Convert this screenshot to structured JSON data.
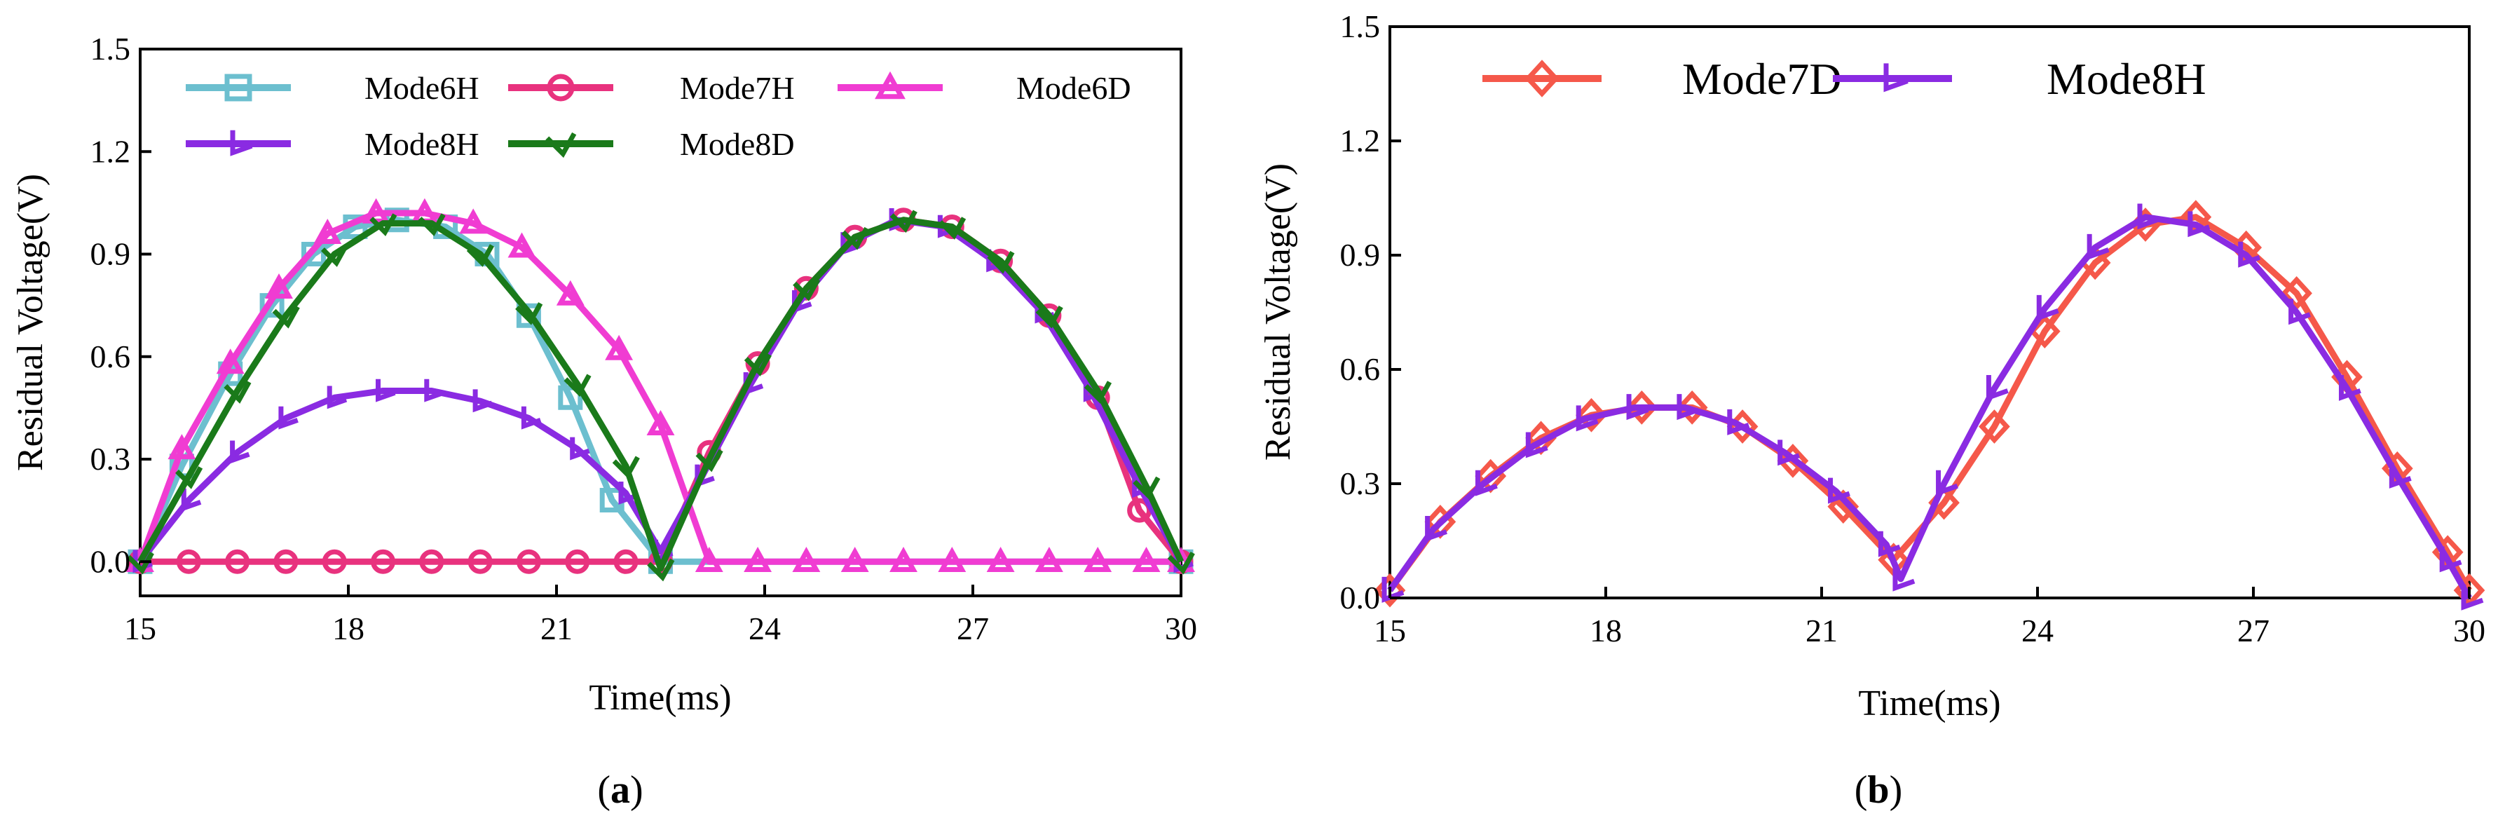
{
  "chart_data": [
    {
      "id": "a",
      "type": "line",
      "caption": {
        "open": "(",
        "letter": "a",
        "close": ")"
      },
      "xlabel": "Time(ms)",
      "ylabel": "Residual Voltage(V)",
      "xlim": [
        15,
        30
      ],
      "ylim": [
        -0.1,
        1.5
      ],
      "xticks": [
        15,
        18,
        21,
        24,
        27,
        30
      ],
      "yticks": [
        0.0,
        0.3,
        0.6,
        0.9,
        1.2,
        1.5
      ],
      "ytick_labels": [
        "0.0",
        "0.3",
        "0.6",
        "0.9",
        "1.2",
        "1.5"
      ],
      "grid": false,
      "legend_position": "top-right",
      "series": [
        {
          "name": "Mode6H",
          "color": "#6cbfcf",
          "marker": "square",
          "x": [
            15,
            15.6,
            16.3,
            16.9,
            17.5,
            18.1,
            18.7,
            19.4,
            20,
            20.6,
            21.2,
            21.8,
            22.5,
            30
          ],
          "y": [
            0,
            0.28,
            0.55,
            0.75,
            0.9,
            0.98,
            1.0,
            0.98,
            0.9,
            0.72,
            0.48,
            0.18,
            0,
            0
          ]
        },
        {
          "name": "Mode7H",
          "color": "#e8327e",
          "marker": "circle",
          "x": [
            15,
            15.7,
            16.4,
            17.1,
            17.8,
            18.5,
            19.2,
            19.9,
            20.6,
            21.3,
            22,
            22.5,
            23.2,
            23.9,
            24.6,
            25.3,
            26,
            26.7,
            27.4,
            28.1,
            28.8,
            29.4,
            30
          ],
          "y": [
            0,
            0,
            0,
            0,
            0,
            0,
            0,
            0,
            0,
            0,
            0,
            0,
            0.32,
            0.58,
            0.8,
            0.95,
            1.0,
            0.98,
            0.88,
            0.72,
            0.48,
            0.15,
            0
          ]
        },
        {
          "name": "Mode6D",
          "color": "#f03cd2",
          "marker": "triangle",
          "x": [
            15,
            15.6,
            16.3,
            17,
            17.7,
            18.4,
            19.1,
            19.8,
            20.5,
            21.2,
            21.9,
            22.5,
            23.2,
            23.9,
            24.6,
            25.3,
            26,
            26.7,
            27.4,
            28.1,
            28.8,
            29.5,
            30
          ],
          "y": [
            0,
            0.33,
            0.58,
            0.8,
            0.96,
            1.02,
            1.02,
            0.99,
            0.92,
            0.78,
            0.62,
            0.4,
            0,
            0,
            0,
            0,
            0,
            0,
            0,
            0,
            0,
            0,
            0
          ]
        },
        {
          "name": "Mode8H",
          "color": "#8a2be2",
          "marker": "tri_right",
          "x": [
            15,
            15.7,
            16.4,
            17.1,
            17.8,
            18.5,
            19.2,
            19.9,
            20.6,
            21.3,
            22,
            22.5,
            23.1,
            23.8,
            24.5,
            25.2,
            25.9,
            26.6,
            27.3,
            28,
            28.7,
            29.4,
            30
          ],
          "y": [
            0,
            0.18,
            0.32,
            0.42,
            0.48,
            0.5,
            0.5,
            0.47,
            0.42,
            0.33,
            0.2,
            0.03,
            0.25,
            0.52,
            0.76,
            0.93,
            1.0,
            0.98,
            0.88,
            0.73,
            0.5,
            0.22,
            0
          ]
        },
        {
          "name": "Mode8D",
          "color": "#1a7a1a",
          "marker": "tri_down",
          "x": [
            15,
            15.7,
            16.4,
            17.1,
            17.8,
            18.5,
            19.2,
            19.9,
            20.6,
            21.3,
            22,
            22.5,
            23.2,
            23.9,
            24.6,
            25.3,
            26,
            26.7,
            27.4,
            28.1,
            28.8,
            29.5,
            30
          ],
          "y": [
            0,
            0.25,
            0.5,
            0.72,
            0.9,
            0.99,
            0.99,
            0.9,
            0.73,
            0.52,
            0.28,
            -0.02,
            0.3,
            0.58,
            0.8,
            0.95,
            1.0,
            0.98,
            0.88,
            0.72,
            0.5,
            0.22,
            0
          ]
        }
      ]
    },
    {
      "id": "b",
      "type": "line",
      "caption": {
        "open": "(",
        "letter": "b",
        "close": ")"
      },
      "xlabel": "Time(ms)",
      "ylabel": "Residual Voltage(V)",
      "xlim": [
        15,
        30
      ],
      "ylim": [
        0,
        1.5
      ],
      "xticks": [
        15,
        18,
        21,
        24,
        27,
        30
      ],
      "yticks": [
        0.0,
        0.3,
        0.6,
        0.9,
        1.2,
        1.5
      ],
      "ytick_labels": [
        "0.0",
        "0.3",
        "0.6",
        "0.9",
        "1.2",
        "1.5"
      ],
      "grid": false,
      "legend_position": "top",
      "series": [
        {
          "name": "Mode7D",
          "color": "#f5584a",
          "marker": "diamond",
          "x": [
            15,
            15.7,
            16.4,
            17.1,
            17.8,
            18.5,
            19.2,
            19.9,
            20.6,
            21.3,
            22,
            22.7,
            23.4,
            24.1,
            24.8,
            25.5,
            26.2,
            26.9,
            27.6,
            28.3,
            29,
            29.7,
            30
          ],
          "y": [
            0.02,
            0.2,
            0.32,
            0.42,
            0.48,
            0.5,
            0.5,
            0.45,
            0.36,
            0.24,
            0.1,
            0.25,
            0.45,
            0.7,
            0.88,
            0.98,
            1.0,
            0.92,
            0.8,
            0.58,
            0.34,
            0.12,
            0.02
          ]
        },
        {
          "name": "Mode8H",
          "color": "#8a2be2",
          "marker": "tri_right",
          "x": [
            15,
            15.6,
            16.3,
            17,
            17.7,
            18.4,
            19.1,
            19.8,
            20.5,
            21.2,
            21.9,
            22.1,
            22.7,
            23.4,
            24.1,
            24.8,
            25.5,
            26.2,
            26.9,
            27.6,
            28.3,
            29,
            29.7,
            30
          ],
          "y": [
            0.02,
            0.18,
            0.3,
            0.4,
            0.47,
            0.5,
            0.5,
            0.46,
            0.38,
            0.28,
            0.14,
            0.05,
            0.3,
            0.55,
            0.76,
            0.92,
            1.0,
            0.98,
            0.9,
            0.75,
            0.55,
            0.32,
            0.1,
            0.0
          ]
        }
      ]
    }
  ]
}
